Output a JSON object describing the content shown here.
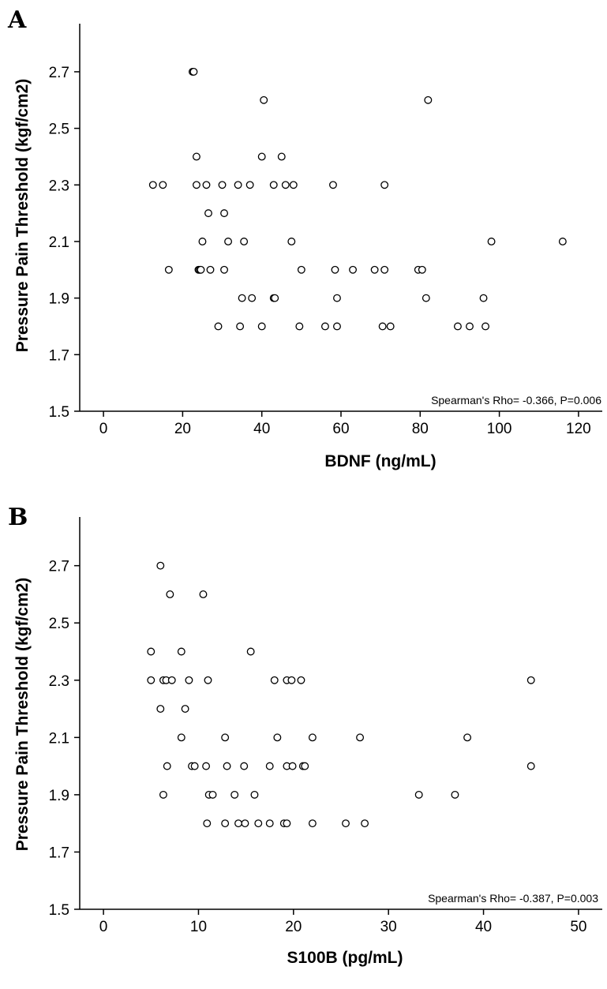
{
  "chart_data": [
    {
      "type": "scatter",
      "panel_label": "A",
      "xlabel": "BDNF (ng/mL)",
      "ylabel": "Pressure Pain Threshold (kgf/cm2)",
      "xlim": [
        -6,
        126
      ],
      "ylim": [
        1.5,
        2.87
      ],
      "xticks": [
        0,
        20,
        40,
        60,
        80,
        100,
        120
      ],
      "yticks": [
        1.5,
        1.7,
        1.9,
        2.1,
        2.3,
        2.5,
        2.7
      ],
      "ytick_labels": [
        "1.5",
        "1.7",
        "1.9",
        "2.1",
        "2.3",
        "2.5",
        "2.7"
      ],
      "annotation": "Spearman's Rho= -0.366, P=0.006",
      "grid": false,
      "points": [
        {
          "x": 22.5,
          "y": 2.7
        },
        {
          "x": 22.8,
          "y": 2.7
        },
        {
          "x": 40.5,
          "y": 2.6
        },
        {
          "x": 82,
          "y": 2.6
        },
        {
          "x": 23.5,
          "y": 2.4
        },
        {
          "x": 40,
          "y": 2.4
        },
        {
          "x": 45,
          "y": 2.4
        },
        {
          "x": 12.5,
          "y": 2.3
        },
        {
          "x": 15,
          "y": 2.3
        },
        {
          "x": 23.5,
          "y": 2.3
        },
        {
          "x": 26,
          "y": 2.3
        },
        {
          "x": 30,
          "y": 2.3
        },
        {
          "x": 34,
          "y": 2.3
        },
        {
          "x": 37,
          "y": 2.3
        },
        {
          "x": 43,
          "y": 2.3
        },
        {
          "x": 46,
          "y": 2.3
        },
        {
          "x": 48,
          "y": 2.3
        },
        {
          "x": 58,
          "y": 2.3
        },
        {
          "x": 71,
          "y": 2.3
        },
        {
          "x": 26.5,
          "y": 2.2
        },
        {
          "x": 30.5,
          "y": 2.2
        },
        {
          "x": 25,
          "y": 2.1
        },
        {
          "x": 31.5,
          "y": 2.1
        },
        {
          "x": 35.5,
          "y": 2.1
        },
        {
          "x": 47.5,
          "y": 2.1
        },
        {
          "x": 98,
          "y": 2.1
        },
        {
          "x": 116,
          "y": 2.1
        },
        {
          "x": 16.5,
          "y": 2.0
        },
        {
          "x": 24,
          "y": 2.0
        },
        {
          "x": 24.3,
          "y": 2.0
        },
        {
          "x": 24.6,
          "y": 2.0
        },
        {
          "x": 27,
          "y": 2.0
        },
        {
          "x": 30.5,
          "y": 2.0
        },
        {
          "x": 50,
          "y": 2.0
        },
        {
          "x": 58.5,
          "y": 2.0
        },
        {
          "x": 63,
          "y": 2.0
        },
        {
          "x": 68.5,
          "y": 2.0
        },
        {
          "x": 71,
          "y": 2.0
        },
        {
          "x": 79.5,
          "y": 2.0
        },
        {
          "x": 80.5,
          "y": 2.0
        },
        {
          "x": 35,
          "y": 1.9
        },
        {
          "x": 37.5,
          "y": 1.9
        },
        {
          "x": 43,
          "y": 1.9
        },
        {
          "x": 43.3,
          "y": 1.9
        },
        {
          "x": 59,
          "y": 1.9
        },
        {
          "x": 81.5,
          "y": 1.9
        },
        {
          "x": 96,
          "y": 1.9
        },
        {
          "x": 29,
          "y": 1.8
        },
        {
          "x": 34.5,
          "y": 1.8
        },
        {
          "x": 40,
          "y": 1.8
        },
        {
          "x": 49.5,
          "y": 1.8
        },
        {
          "x": 56,
          "y": 1.8
        },
        {
          "x": 59,
          "y": 1.8
        },
        {
          "x": 70.5,
          "y": 1.8
        },
        {
          "x": 72.5,
          "y": 1.8
        },
        {
          "x": 89.5,
          "y": 1.8
        },
        {
          "x": 92.5,
          "y": 1.8
        },
        {
          "x": 96.5,
          "y": 1.8
        }
      ]
    },
    {
      "type": "scatter",
      "panel_label": "B",
      "xlabel": "S100B (pg/mL)",
      "ylabel": "Pressure Pain Threshold (kgf/cm2)",
      "xlim": [
        -2.5,
        52.5
      ],
      "ylim": [
        1.5,
        2.87
      ],
      "xticks": [
        0,
        10,
        20,
        30,
        40,
        50
      ],
      "yticks": [
        1.5,
        1.7,
        1.9,
        2.1,
        2.3,
        2.5,
        2.7
      ],
      "ytick_labels": [
        "1.5",
        "1.7",
        "1.9",
        "2.1",
        "2.3",
        "2.5",
        "2.7"
      ],
      "annotation": "Spearman's Rho= -0.387, P=0.003",
      "grid": false,
      "points": [
        {
          "x": 6,
          "y": 2.7
        },
        {
          "x": 7,
          "y": 2.6
        },
        {
          "x": 10.5,
          "y": 2.6
        },
        {
          "x": 5,
          "y": 2.4
        },
        {
          "x": 8.2,
          "y": 2.4
        },
        {
          "x": 15.5,
          "y": 2.4
        },
        {
          "x": 5,
          "y": 2.3
        },
        {
          "x": 6.3,
          "y": 2.3
        },
        {
          "x": 6.6,
          "y": 2.3
        },
        {
          "x": 7.2,
          "y": 2.3
        },
        {
          "x": 9,
          "y": 2.3
        },
        {
          "x": 11,
          "y": 2.3
        },
        {
          "x": 18,
          "y": 2.3
        },
        {
          "x": 19.3,
          "y": 2.3
        },
        {
          "x": 19.8,
          "y": 2.3
        },
        {
          "x": 20.8,
          "y": 2.3
        },
        {
          "x": 45,
          "y": 2.3
        },
        {
          "x": 6,
          "y": 2.2
        },
        {
          "x": 8.6,
          "y": 2.2
        },
        {
          "x": 8.2,
          "y": 2.1
        },
        {
          "x": 12.8,
          "y": 2.1
        },
        {
          "x": 18.3,
          "y": 2.1
        },
        {
          "x": 22,
          "y": 2.1
        },
        {
          "x": 27,
          "y": 2.1
        },
        {
          "x": 38.3,
          "y": 2.1
        },
        {
          "x": 6.7,
          "y": 2.0
        },
        {
          "x": 9.3,
          "y": 2.0
        },
        {
          "x": 9.6,
          "y": 2.0
        },
        {
          "x": 10.8,
          "y": 2.0
        },
        {
          "x": 13,
          "y": 2.0
        },
        {
          "x": 14.8,
          "y": 2.0
        },
        {
          "x": 17.5,
          "y": 2.0
        },
        {
          "x": 19.3,
          "y": 2.0
        },
        {
          "x": 19.9,
          "y": 2.0
        },
        {
          "x": 21,
          "y": 2.0
        },
        {
          "x": 21.2,
          "y": 2.0
        },
        {
          "x": 45,
          "y": 2.0
        },
        {
          "x": 6.3,
          "y": 1.9
        },
        {
          "x": 11.1,
          "y": 1.9
        },
        {
          "x": 11.5,
          "y": 1.9
        },
        {
          "x": 13.8,
          "y": 1.9
        },
        {
          "x": 15.9,
          "y": 1.9
        },
        {
          "x": 33.2,
          "y": 1.9
        },
        {
          "x": 37,
          "y": 1.9
        },
        {
          "x": 10.9,
          "y": 1.8
        },
        {
          "x": 12.8,
          "y": 1.8
        },
        {
          "x": 14.2,
          "y": 1.8
        },
        {
          "x": 14.9,
          "y": 1.8
        },
        {
          "x": 16.3,
          "y": 1.8
        },
        {
          "x": 17.5,
          "y": 1.8
        },
        {
          "x": 19,
          "y": 1.8
        },
        {
          "x": 19.3,
          "y": 1.8
        },
        {
          "x": 22,
          "y": 1.8
        },
        {
          "x": 25.5,
          "y": 1.8
        },
        {
          "x": 27.5,
          "y": 1.8
        }
      ]
    }
  ]
}
